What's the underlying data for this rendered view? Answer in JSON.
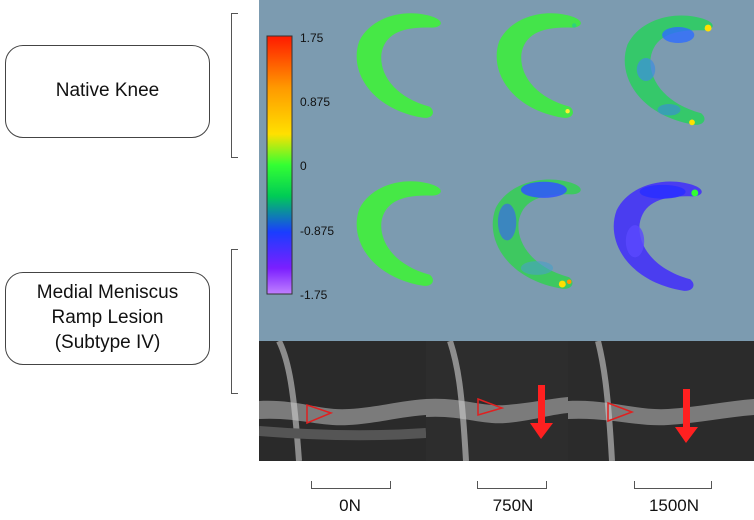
{
  "groups": [
    {
      "label": "Native Knee"
    },
    {
      "label_lines": [
        "Medial Meniscus",
        "Ramp Lesion",
        "(Subtype IV)"
      ]
    }
  ],
  "colorbar": {
    "ticks": [
      "1.75",
      "0.875",
      "0",
      "-0.875",
      "-1.75"
    ],
    "colors": [
      "#ff1a00",
      "#ff9900",
      "#ffe000",
      "#33ff33",
      "#00cc55",
      "#1a3dff",
      "#7b1fff",
      "#c080ff"
    ]
  },
  "loads": [
    "0N",
    "750N",
    "1500N"
  ]
}
